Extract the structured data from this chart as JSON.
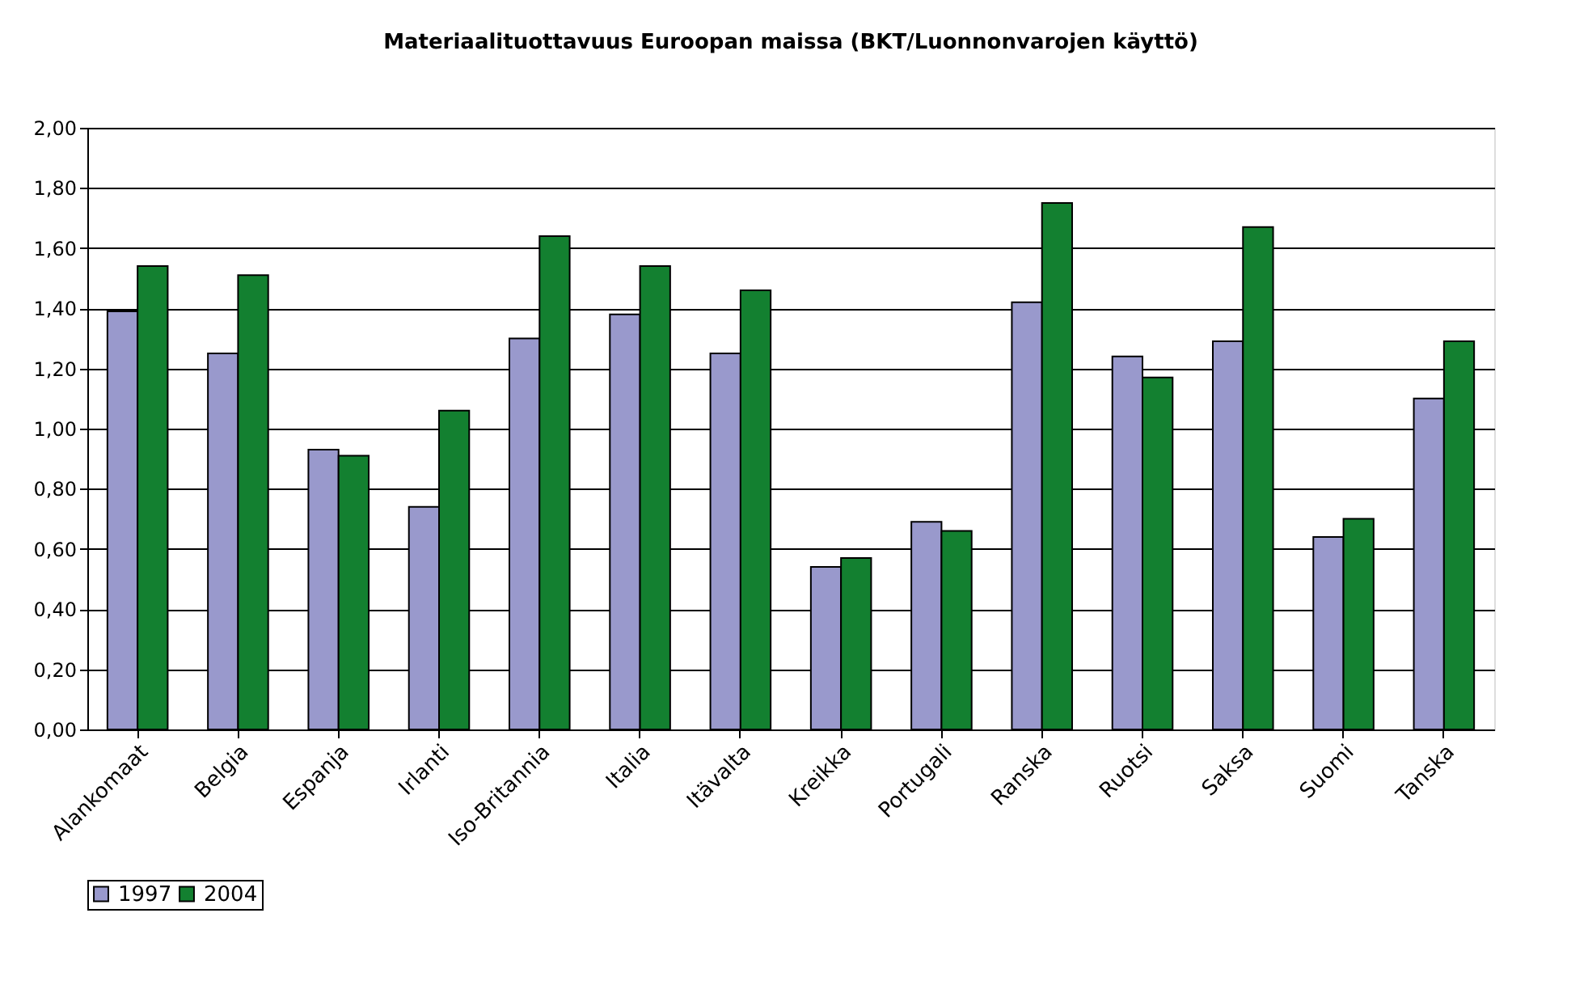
{
  "chart_data": {
    "type": "bar",
    "title": "Materiaalituottavuus Euroopan maissa (BKT/Luonnonvarojen käyttö)",
    "categories": [
      "Alankomaat",
      "Belgia",
      "Espanja",
      "Irlanti",
      "Iso-Britannia",
      "Italia",
      "Itävalta",
      "Kreikka",
      "Portugali",
      "Ranska",
      "Ruotsi",
      "Saksa",
      "Suomi",
      "Tanska"
    ],
    "series": [
      {
        "name": "1997",
        "color": "#9999cc",
        "values": [
          1.39,
          1.25,
          0.93,
          0.74,
          1.3,
          1.38,
          1.25,
          0.54,
          0.69,
          1.42,
          1.24,
          1.29,
          0.64,
          1.1
        ]
      },
      {
        "name": "2004",
        "color": "#138030",
        "values": [
          1.54,
          1.51,
          0.91,
          1.06,
          1.64,
          1.54,
          1.46,
          0.57,
          0.66,
          1.75,
          1.17,
          1.67,
          0.7,
          1.29
        ]
      }
    ],
    "ylim": [
      0,
      2
    ],
    "yticks": [
      {
        "value": 0,
        "label": "0,00"
      },
      {
        "value": 0.2,
        "label": "0,20"
      },
      {
        "value": 0.4,
        "label": "0,40"
      },
      {
        "value": 0.6,
        "label": "0,60"
      },
      {
        "value": 0.8,
        "label": "0,80"
      },
      {
        "value": 1,
        "label": "1,00"
      },
      {
        "value": 1.2,
        "label": "1,20"
      },
      {
        "value": 1.4,
        "label": "1,40"
      },
      {
        "value": 1.6,
        "label": "1,60"
      },
      {
        "value": 1.8,
        "label": "1,80"
      },
      {
        "value": 2,
        "label": "2,00"
      }
    ],
    "grid": "y",
    "legend": "bottom"
  }
}
